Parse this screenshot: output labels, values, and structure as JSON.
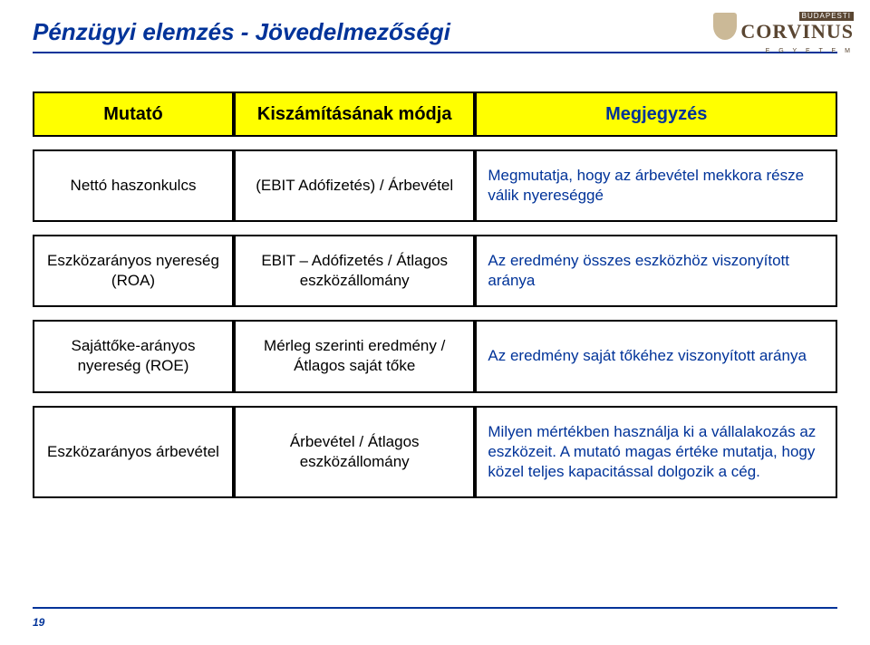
{
  "title": "Pénzügyi elemzés - Jövedelmezőségi",
  "logo": {
    "top": "BUDAPESTI",
    "name": "CORVINUS",
    "sub": "E G Y E T E M"
  },
  "table": {
    "header_bg": "#ffff00",
    "header_color": "#003399",
    "border_color": "#000000",
    "note_color": "#003399",
    "columns": [
      "Mutató",
      "Kiszámításának módja",
      "Megjegyzés"
    ],
    "rows": [
      {
        "c1": "Nettó haszonkulcs",
        "c2": "(EBIT Adófizetés) / Árbevétel",
        "c3": "Megmutatja, hogy az árbevétel mekkora része válik nyereséggé"
      },
      {
        "c1": "Eszközarányos nyereség (ROA)",
        "c2": "EBIT – Adófizetés / Átlagos eszközállomány",
        "c3": "Az eredmény összes eszközhöz viszonyított aránya"
      },
      {
        "c1": "Sajáttőke-arányos nyereség (ROE)",
        "c2": "Mérleg szerinti eredmény / Átlagos saját tőke",
        "c3": "Az eredmény saját tőkéhez viszonyított aránya"
      },
      {
        "c1": "Eszközarányos árbevétel",
        "c2": "Árbevétel / Átlagos eszközállomány",
        "c3": "Milyen mértékben használja ki a vállalakozás az eszközeit. A mutató magas értéke mutatja, hogy közel teljes kapacitással dolgozik a cég."
      }
    ]
  },
  "page_number": "19",
  "colors": {
    "title": "#003399",
    "rule": "#003399"
  }
}
